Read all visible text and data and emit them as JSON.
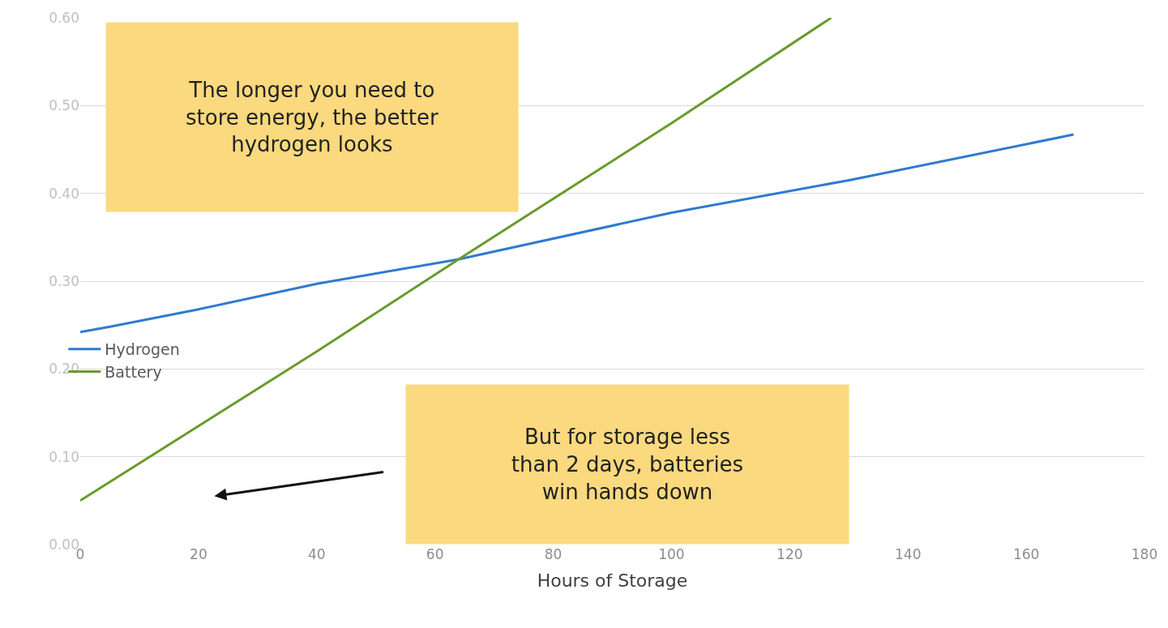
{
  "chart_data": {
    "type": "line",
    "xlabel": "Hours of Storage",
    "series": [
      {
        "name": "Hydrogen",
        "color": "#2e7bcf",
        "x": [
          0,
          5,
          20,
          40,
          64,
          100,
          130,
          168
        ],
        "values": [
          0.242,
          0.248,
          0.268,
          0.297,
          0.325,
          0.378,
          0.415,
          0.467
        ]
      },
      {
        "name": "Battery",
        "color": "#6a9a2c",
        "x": [
          0,
          20,
          40,
          64,
          100,
          127
        ],
        "values": [
          0.05,
          0.135,
          0.22,
          0.325,
          0.48,
          0.6
        ]
      }
    ],
    "xlim": [
      0,
      180
    ],
    "xticks": [
      0,
      20,
      40,
      60,
      80,
      100,
      120,
      140,
      160,
      180
    ],
    "ylim": [
      0,
      0.6
    ],
    "yticks": [
      {
        "value": 0,
        "label": "0.00"
      },
      {
        "value": 0.1,
        "label": "0.10"
      },
      {
        "value": 0.2,
        "label": "0.20"
      },
      {
        "value": 0.3,
        "label": "0.30"
      },
      {
        "value": 0.4,
        "label": "0.40"
      },
      {
        "value": 0.5,
        "label": "0.50"
      },
      {
        "value": 0.6,
        "label": "0.60"
      }
    ],
    "grid": "y",
    "legend": "left",
    "marker": "none",
    "line_style": "solid",
    "annotations": [
      "The longer you need to\nstore energy, the better\nhydrogen looks",
      "But for storage less\nthan 2 days, batteries\nwin hands down"
    ]
  }
}
